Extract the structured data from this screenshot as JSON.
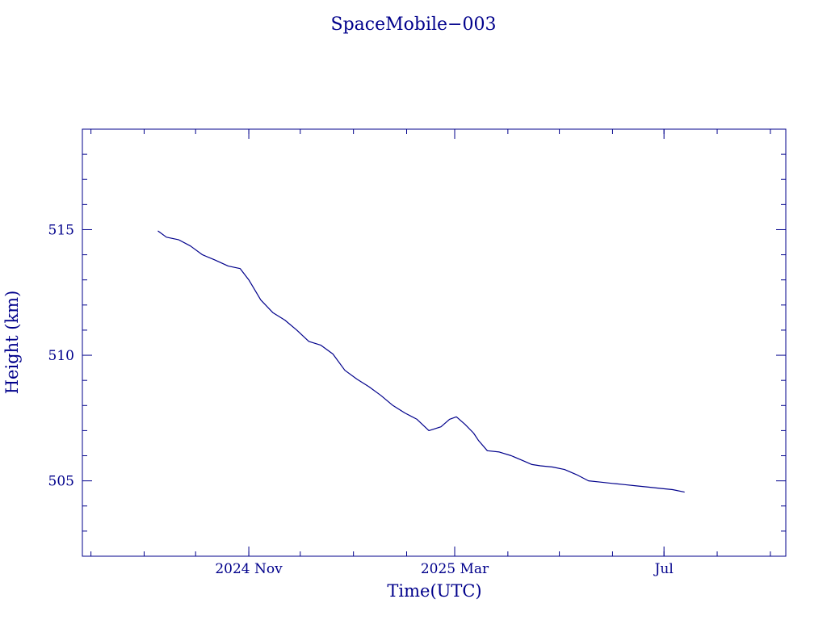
{
  "chart_data": {
    "type": "line",
    "title": "SpaceMobile−003",
    "xlabel": "Time(UTC)",
    "ylabel": "Height (km)",
    "x_tick_labels": [
      {
        "date": "2024-11-01",
        "label": "2024 Nov"
      },
      {
        "date": "2025-03-01",
        "label": "2025 Mar"
      },
      {
        "date": "2025-07-01",
        "label": "Jul"
      }
    ],
    "y_tick_labels": [
      {
        "value": 505,
        "label": "505"
      },
      {
        "value": 510,
        "label": "510"
      },
      {
        "value": 515,
        "label": "515"
      }
    ],
    "xlim": [
      "2024-07-27",
      "2025-09-10"
    ],
    "ylim": [
      502,
      519
    ],
    "grid": false,
    "series": [
      {
        "x": [
          "2024-09-09",
          "2024-09-14",
          "2024-09-21",
          "2024-09-28",
          "2024-10-05",
          "2024-10-12",
          "2024-10-20",
          "2024-10-27",
          "2024-11-01",
          "2024-11-08",
          "2024-11-15",
          "2024-11-22",
          "2024-11-29",
          "2024-12-06",
          "2024-12-13",
          "2024-12-20",
          "2024-12-27",
          "2025-01-03",
          "2025-01-10",
          "2025-01-17",
          "2025-01-24",
          "2025-01-31",
          "2025-02-07",
          "2025-02-14",
          "2025-02-21",
          "2025-02-26",
          "2025-03-02",
          "2025-03-07",
          "2025-03-12",
          "2025-03-15",
          "2025-03-20",
          "2025-03-27",
          "2025-04-03",
          "2025-04-10",
          "2025-04-15",
          "2025-04-20",
          "2025-04-27",
          "2025-05-04",
          "2025-05-11",
          "2025-05-18",
          "2025-05-25",
          "2025-06-01",
          "2025-06-08",
          "2025-06-15",
          "2025-06-22",
          "2025-06-29",
          "2025-07-06",
          "2025-07-13"
        ],
        "y": [
          514.95,
          514.7,
          514.6,
          514.35,
          514.0,
          513.8,
          513.55,
          513.45,
          513.0,
          512.2,
          511.7,
          511.4,
          511.0,
          510.55,
          510.4,
          510.05,
          509.4,
          509.05,
          508.75,
          508.4,
          508.0,
          507.7,
          507.45,
          507.0,
          507.15,
          507.45,
          507.55,
          507.25,
          506.9,
          506.6,
          506.2,
          506.15,
          506.0,
          505.8,
          505.65,
          505.6,
          505.55,
          505.45,
          505.25,
          505.0,
          504.95,
          504.9,
          504.85,
          504.8,
          504.75,
          504.7,
          504.65,
          504.55
        ]
      }
    ],
    "colors": {
      "axis": "#00008b",
      "line": "#00008b",
      "text": "#00008b",
      "background": "#ffffff"
    }
  }
}
